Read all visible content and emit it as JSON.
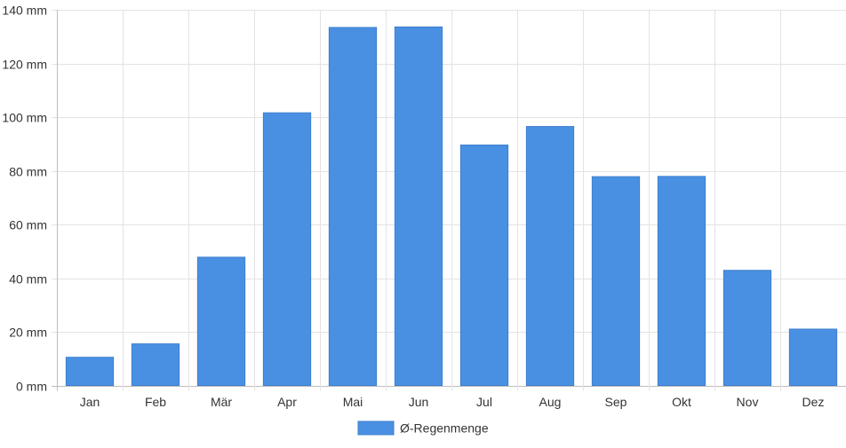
{
  "chart_data": {
    "type": "bar",
    "title": "",
    "xlabel": "",
    "ylabel": "",
    "categories": [
      "Jan",
      "Feb",
      "Mär",
      "Apr",
      "Mai",
      "Jun",
      "Jul",
      "Aug",
      "Sep",
      "Okt",
      "Nov",
      "Dez"
    ],
    "series": [
      {
        "name": "Ø-Regenmenge",
        "values": [
          10.5,
          15.5,
          47.8,
          101.6,
          133.4,
          133.6,
          89.6,
          96.5,
          77.8,
          77.9,
          42.9,
          21.0
        ],
        "color": "#4a90e2"
      }
    ],
    "ylim": [
      0,
      140
    ],
    "yticks": [
      0,
      20,
      40,
      60,
      80,
      100,
      120,
      140
    ],
    "y_unit": "mm",
    "grid": true,
    "legend_position": "bottom"
  }
}
